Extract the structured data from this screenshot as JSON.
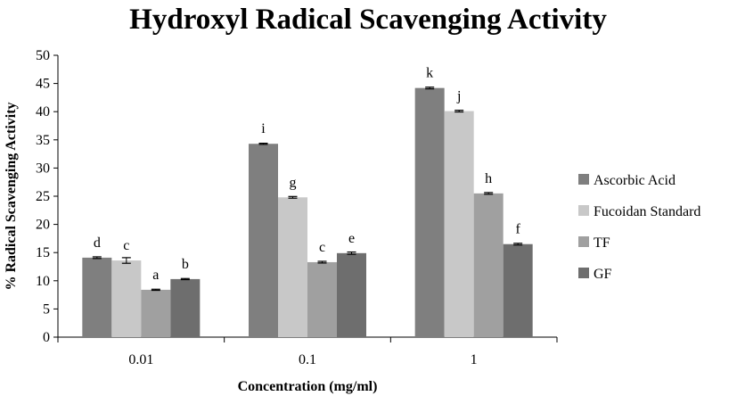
{
  "chart_data": {
    "type": "bar",
    "title": "Hydroxyl Radical Scavenging Activity",
    "xlabel": "Concentration (mg/ml)",
    "ylabel": "% Radical Scavenging Activity",
    "ylim": [
      0,
      50
    ],
    "yticks": [
      0,
      5,
      10,
      15,
      20,
      25,
      30,
      35,
      40,
      45,
      50
    ],
    "grid": false,
    "legend_position": "right",
    "categories": [
      "0.01",
      "0.1",
      "1"
    ],
    "series": [
      {
        "name": "Ascorbic Acid",
        "color": "#7f7f7f",
        "values": [
          14.1,
          34.3,
          44.2
        ],
        "errors": [
          0.15,
          0.1,
          0.15
        ],
        "labels": [
          "d",
          "i",
          "k"
        ]
      },
      {
        "name": "Fucoidan Standard",
        "color": "#c8c8c8",
        "values": [
          13.6,
          24.8,
          40.1
        ],
        "errors": [
          0.5,
          0.15,
          0.15
        ],
        "labels": [
          "c",
          "g",
          "j"
        ]
      },
      {
        "name": "TF",
        "color": "#a0a0a0",
        "values": [
          8.4,
          13.3,
          25.5
        ],
        "errors": [
          0.1,
          0.15,
          0.15
        ],
        "labels": [
          "a",
          "c",
          "h"
        ]
      },
      {
        "name": "GF",
        "color": "#6e6e6e",
        "values": [
          10.3,
          14.9,
          16.5
        ],
        "errors": [
          0.1,
          0.2,
          0.15
        ],
        "labels": [
          "b",
          "e",
          "f"
        ]
      }
    ]
  }
}
